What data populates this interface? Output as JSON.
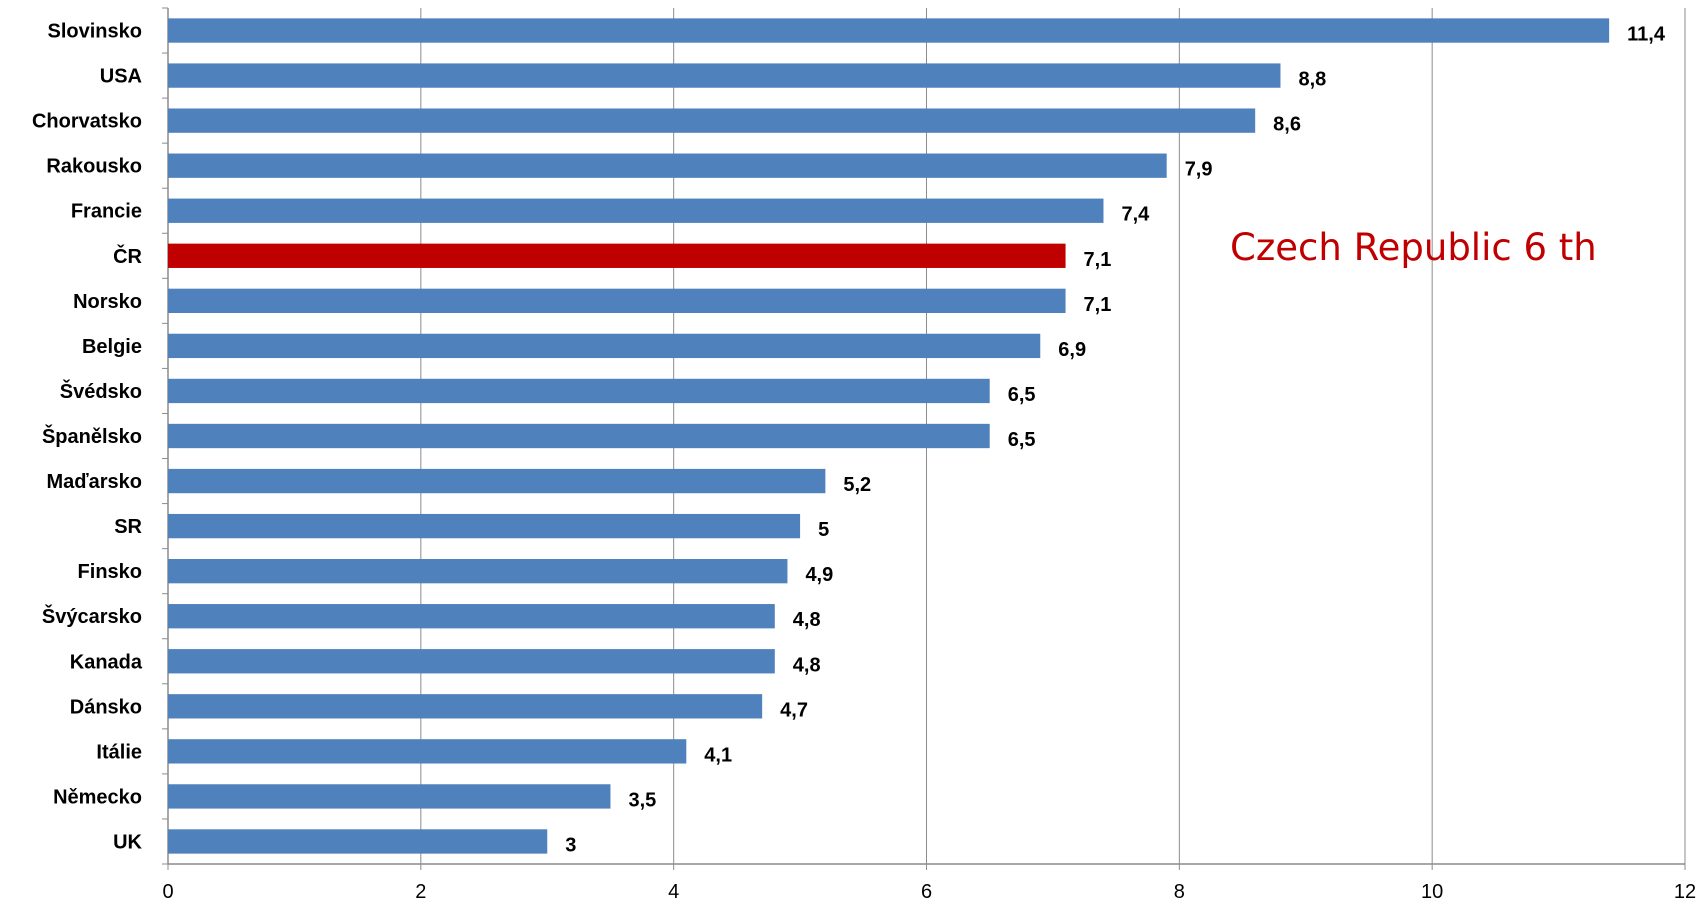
{
  "chart_data": {
    "type": "bar",
    "orientation": "horizontal",
    "categories": [
      "Slovinsko",
      "USA",
      "Chorvatsko",
      "Rakousko",
      "Francie",
      "ČR",
      "Norsko",
      "Belgie",
      "Švédsko",
      "Španělsko",
      "Maďarsko",
      "SR",
      "Finsko",
      "Švýcarsko",
      "Kanada",
      "Dánsko",
      "Itálie",
      "Německo",
      "UK"
    ],
    "values": [
      11.4,
      8.8,
      8.6,
      7.9,
      7.4,
      7.1,
      7.1,
      6.9,
      6.5,
      6.5,
      5.2,
      5,
      4.9,
      4.8,
      4.8,
      4.7,
      4.1,
      3.5,
      3
    ],
    "value_labels": [
      "11,4",
      "8,8",
      "8,6",
      "7,9",
      "7,4",
      "7,1",
      "7,1",
      "6,9",
      "6,5",
      "6,5",
      "5,2",
      "5",
      "4,9",
      "4,8",
      "4,8",
      "4,7",
      "4,1",
      "3,5",
      "3"
    ],
    "highlight_category": "ČR",
    "xlim": [
      0,
      12
    ],
    "xticks": [
      0,
      2,
      4,
      6,
      8,
      10,
      12
    ],
    "grid": true,
    "legend": "none",
    "title": "",
    "xlabel": "",
    "ylabel": "",
    "annotations": [
      {
        "text": "Czech Republic 6 th",
        "color": "#c00000"
      }
    ],
    "colors": {
      "bar": "#4f81bd",
      "highlight": "#c00000",
      "grid": "#8c8c8c",
      "axis": "#8c8c8c",
      "text": "#000000"
    }
  }
}
